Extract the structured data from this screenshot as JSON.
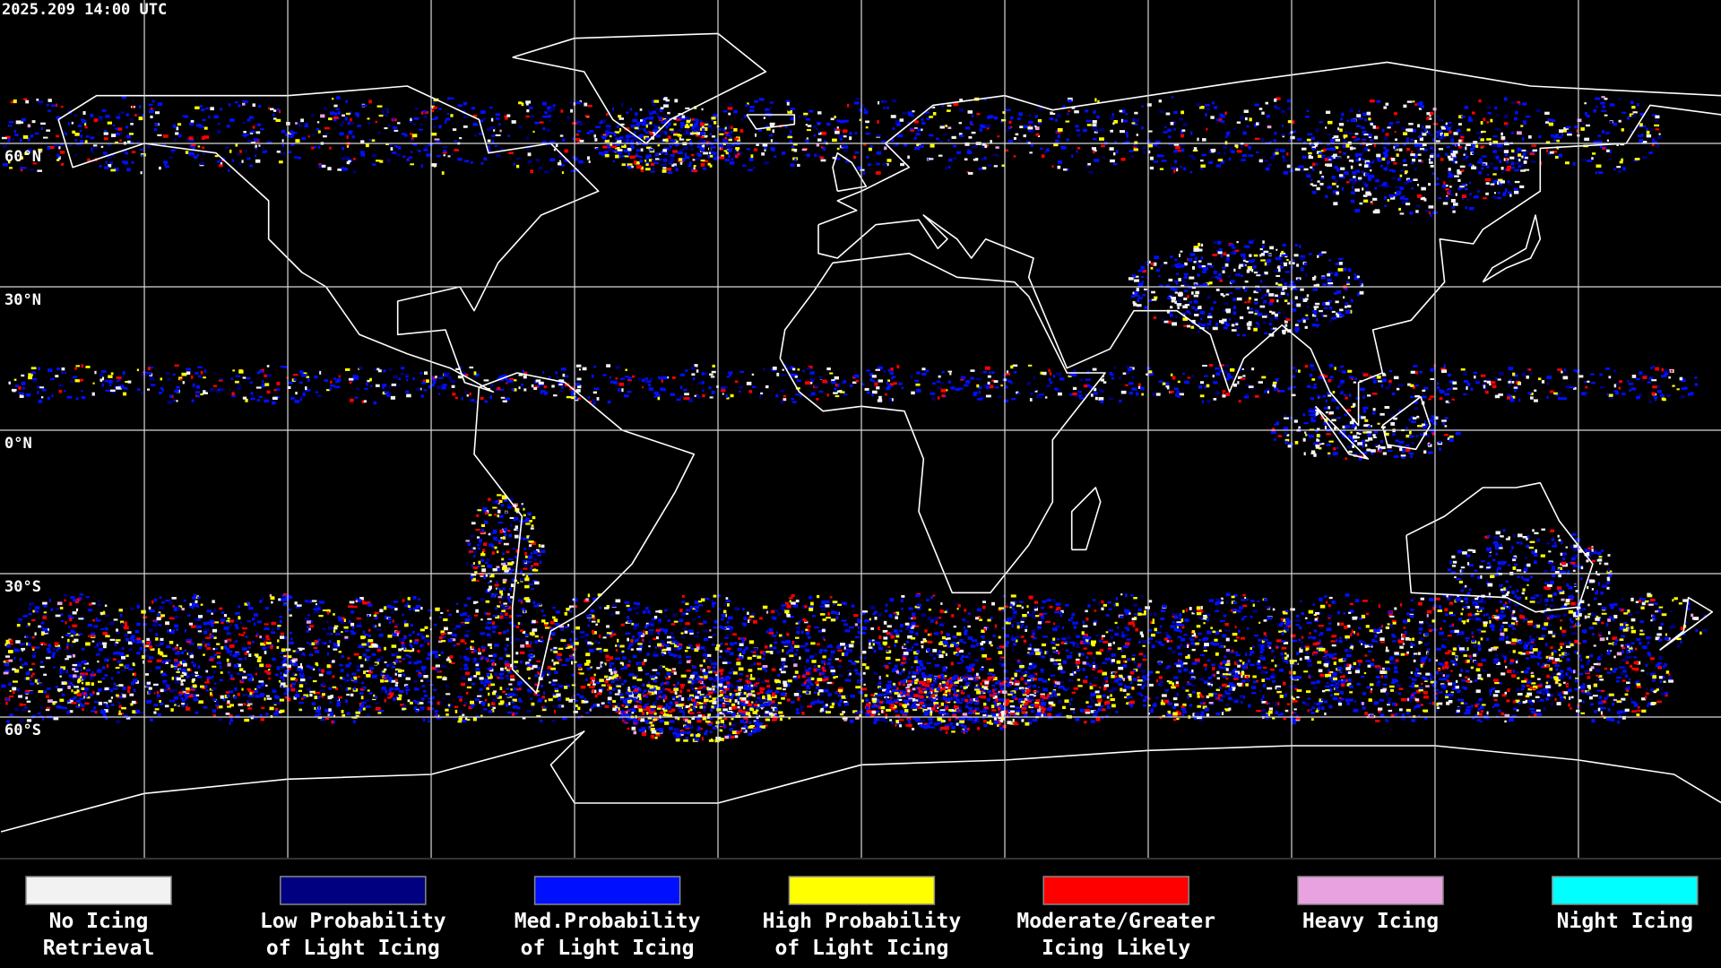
{
  "header": {
    "timestamp": "2025.209 14:00 UTC"
  },
  "latitude_labels": [
    "60°N",
    "30°N",
    "0°N",
    "30°S",
    "60°S"
  ],
  "legend": [
    {
      "lines": [
        "No Icing",
        "Retrieval"
      ],
      "color": "#f2f2f2"
    },
    {
      "lines": [
        "Low Probability",
        "of Light Icing"
      ],
      "color": "#000080"
    },
    {
      "lines": [
        "Med.Probability",
        "of Light Icing"
      ],
      "color": "#0010ff"
    },
    {
      "lines": [
        "High Probability",
        "of Light Icing"
      ],
      "color": "#ffff00"
    },
    {
      "lines": [
        "Moderate/Greater",
        "Icing Likely"
      ],
      "color": "#ff0000"
    },
    {
      "lines": [
        "Heavy Icing"
      ],
      "color": "#e8a2e0"
    },
    {
      "lines": [
        "Night Icing"
      ],
      "color": "#00ffff"
    }
  ]
}
